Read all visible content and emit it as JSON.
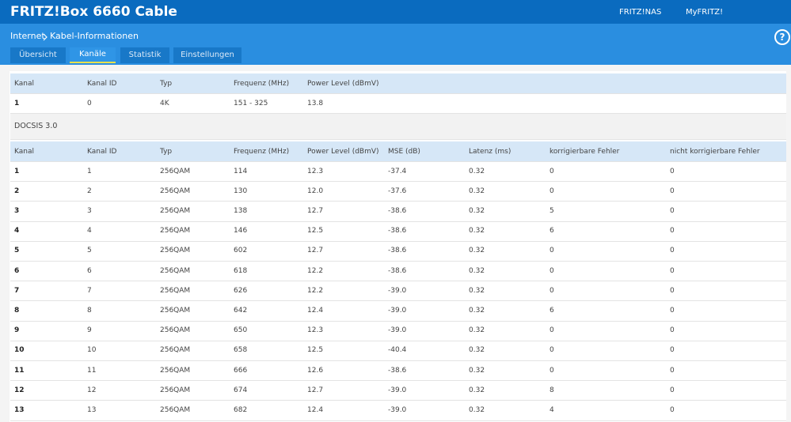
{
  "header": {
    "title": "FRITZ!Box 6660 Cable",
    "links": [
      "FRITZ!NAS",
      "MyFRITZ!"
    ],
    "help": "?"
  },
  "breadcrumb": [
    "Internet",
    "Kabel-Informationen"
  ],
  "tabs": {
    "items": [
      "Übersicht",
      "Kanäle",
      "Statistik",
      "Einstellungen"
    ],
    "active": 1
  },
  "table1": {
    "columns": [
      "Kanal",
      "Kanal ID",
      "Typ",
      "Frequenz (MHz)",
      "Power Level (dBmV)"
    ],
    "rows": [
      [
        "1",
        "0",
        "4K",
        "151 - 325",
        "13.8"
      ]
    ]
  },
  "section": "DOCSIS 3.0",
  "table2": {
    "columns": [
      "Kanal",
      "Kanal ID",
      "Typ",
      "Frequenz (MHz)",
      "Power Level (dBmV)",
      "MSE (dB)",
      "Latenz (ms)",
      "korrigierbare Fehler",
      "nicht korrigierbare Fehler"
    ],
    "rows": [
      [
        "1",
        "1",
        "256QAM",
        "114",
        "12.3",
        "-37.4",
        "0.32",
        "0",
        "0"
      ],
      [
        "2",
        "2",
        "256QAM",
        "130",
        "12.0",
        "-37.6",
        "0.32",
        "0",
        "0"
      ],
      [
        "3",
        "3",
        "256QAM",
        "138",
        "12.7",
        "-38.6",
        "0.32",
        "5",
        "0"
      ],
      [
        "4",
        "4",
        "256QAM",
        "146",
        "12.5",
        "-38.6",
        "0.32",
        "6",
        "0"
      ],
      [
        "5",
        "5",
        "256QAM",
        "602",
        "12.7",
        "-38.6",
        "0.32",
        "0",
        "0"
      ],
      [
        "6",
        "6",
        "256QAM",
        "618",
        "12.2",
        "-38.6",
        "0.32",
        "0",
        "0"
      ],
      [
        "7",
        "7",
        "256QAM",
        "626",
        "12.2",
        "-39.0",
        "0.32",
        "0",
        "0"
      ],
      [
        "8",
        "8",
        "256QAM",
        "642",
        "12.4",
        "-39.0",
        "0.32",
        "6",
        "0"
      ],
      [
        "9",
        "9",
        "256QAM",
        "650",
        "12.3",
        "-39.0",
        "0.32",
        "0",
        "0"
      ],
      [
        "10",
        "10",
        "256QAM",
        "658",
        "12.5",
        "-40.4",
        "0.32",
        "0",
        "0"
      ],
      [
        "11",
        "11",
        "256QAM",
        "666",
        "12.6",
        "-38.6",
        "0.32",
        "0",
        "0"
      ],
      [
        "12",
        "12",
        "256QAM",
        "674",
        "12.7",
        "-39.0",
        "0.32",
        "8",
        "0"
      ],
      [
        "13",
        "13",
        "256QAM",
        "682",
        "12.4",
        "-39.0",
        "0.32",
        "4",
        "0"
      ]
    ]
  }
}
